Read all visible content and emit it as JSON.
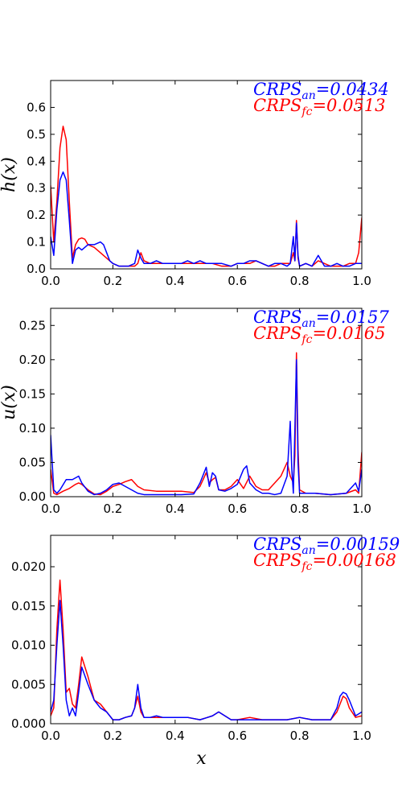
{
  "chart_data": [
    {
      "type": "line",
      "ylabel": "h(x)",
      "xlim": [
        0,
        1
      ],
      "ylim": [
        0,
        0.7
      ],
      "xticks": [
        "0.0",
        "0.2",
        "0.4",
        "0.6",
        "0.8",
        "1.0"
      ],
      "yticks": [
        "0.0",
        "0.1",
        "0.2",
        "0.3",
        "0.4",
        "0.5",
        "0.6"
      ],
      "ytick_values": [
        0,
        0.1,
        0.2,
        0.3,
        0.4,
        0.5,
        0.6
      ],
      "annotations": [
        {
          "base": "CRPS",
          "sub": "an",
          "value": "=0.0434",
          "color": "#0000ff"
        },
        {
          "base": "CRPS",
          "sub": "fc",
          "value": "=0.0513",
          "color": "#ff0000"
        }
      ],
      "series": [
        {
          "color": "#0000ff",
          "x": [
            0,
            0.01,
            0.02,
            0.03,
            0.04,
            0.05,
            0.06,
            0.07,
            0.08,
            0.09,
            0.1,
            0.12,
            0.14,
            0.16,
            0.17,
            0.18,
            0.19,
            0.2,
            0.22,
            0.25,
            0.27,
            0.28,
            0.29,
            0.3,
            0.32,
            0.34,
            0.36,
            0.38,
            0.4,
            0.42,
            0.44,
            0.46,
            0.48,
            0.5,
            0.52,
            0.55,
            0.58,
            0.6,
            0.62,
            0.64,
            0.66,
            0.68,
            0.7,
            0.72,
            0.74,
            0.76,
            0.77,
            0.78,
            0.785,
            0.79,
            0.795,
            0.8,
            0.82,
            0.84,
            0.86,
            0.88,
            0.9,
            0.92,
            0.94,
            0.96,
            0.98,
            1.0
          ],
          "y": [
            0.12,
            0.05,
            0.22,
            0.33,
            0.36,
            0.33,
            0.18,
            0.02,
            0.07,
            0.08,
            0.07,
            0.09,
            0.09,
            0.1,
            0.09,
            0.06,
            0.03,
            0.02,
            0.01,
            0.01,
            0.02,
            0.07,
            0.04,
            0.02,
            0.02,
            0.03,
            0.02,
            0.02,
            0.02,
            0.02,
            0.03,
            0.02,
            0.03,
            0.02,
            0.02,
            0.02,
            0.01,
            0.02,
            0.02,
            0.03,
            0.03,
            0.02,
            0.01,
            0.02,
            0.02,
            0.01,
            0.02,
            0.12,
            0.03,
            0.17,
            0.05,
            0.01,
            0.02,
            0.01,
            0.05,
            0.01,
            0.01,
            0.02,
            0.01,
            0.01,
            0.02,
            0.02
          ]
        },
        {
          "color": "#ff0000",
          "x": [
            0,
            0.01,
            0.02,
            0.03,
            0.04,
            0.05,
            0.06,
            0.07,
            0.08,
            0.09,
            0.1,
            0.11,
            0.12,
            0.14,
            0.16,
            0.18,
            0.2,
            0.22,
            0.25,
            0.27,
            0.28,
            0.29,
            0.3,
            0.32,
            0.34,
            0.36,
            0.38,
            0.4,
            0.42,
            0.44,
            0.46,
            0.48,
            0.5,
            0.52,
            0.55,
            0.58,
            0.6,
            0.62,
            0.64,
            0.66,
            0.68,
            0.7,
            0.72,
            0.74,
            0.76,
            0.77,
            0.78,
            0.785,
            0.79,
            0.795,
            0.8,
            0.82,
            0.84,
            0.86,
            0.88,
            0.9,
            0.92,
            0.94,
            0.96,
            0.98,
            0.99,
            1.0
          ],
          "y": [
            0.31,
            0.1,
            0.25,
            0.45,
            0.53,
            0.48,
            0.25,
            0.04,
            0.09,
            0.11,
            0.115,
            0.11,
            0.09,
            0.08,
            0.06,
            0.04,
            0.02,
            0.01,
            0.01,
            0.01,
            0.02,
            0.06,
            0.03,
            0.02,
            0.02,
            0.02,
            0.02,
            0.02,
            0.02,
            0.02,
            0.02,
            0.02,
            0.02,
            0.02,
            0.01,
            0.01,
            0.02,
            0.02,
            0.02,
            0.03,
            0.02,
            0.01,
            0.01,
            0.02,
            0.02,
            0.02,
            0.06,
            0.03,
            0.18,
            0.04,
            0.01,
            0.02,
            0.01,
            0.03,
            0.02,
            0.01,
            0.01,
            0.01,
            0.02,
            0.02,
            0.06,
            0.19
          ]
        }
      ]
    },
    {
      "type": "line",
      "ylabel": "u(x)",
      "xlim": [
        0,
        1
      ],
      "ylim": [
        0,
        0.275
      ],
      "xticks": [
        "0.0",
        "0.2",
        "0.4",
        "0.6",
        "0.8",
        "1.0"
      ],
      "yticks": [
        "0.00",
        "0.05",
        "0.10",
        "0.15",
        "0.20",
        "0.25"
      ],
      "ytick_values": [
        0,
        0.05,
        0.1,
        0.15,
        0.2,
        0.25
      ],
      "annotations": [
        {
          "base": "CRPS",
          "sub": "an",
          "value": "=0.0157",
          "color": "#0000ff"
        },
        {
          "base": "CRPS",
          "sub": "fc",
          "value": "=0.0165",
          "color": "#ff0000"
        }
      ],
      "series": [
        {
          "color": "#0000ff",
          "x": [
            0,
            0.01,
            0.02,
            0.03,
            0.05,
            0.07,
            0.09,
            0.1,
            0.12,
            0.14,
            0.16,
            0.18,
            0.2,
            0.22,
            0.24,
            0.26,
            0.28,
            0.3,
            0.34,
            0.38,
            0.42,
            0.46,
            0.48,
            0.5,
            0.51,
            0.52,
            0.53,
            0.54,
            0.56,
            0.58,
            0.6,
            0.62,
            0.63,
            0.64,
            0.66,
            0.68,
            0.7,
            0.72,
            0.74,
            0.76,
            0.77,
            0.775,
            0.78,
            0.785,
            0.79,
            0.795,
            0.8,
            0.81,
            0.82,
            0.85,
            0.9,
            0.95,
            0.98,
            0.99,
            1.0
          ],
          "y": [
            0.09,
            0.01,
            0.005,
            0.01,
            0.025,
            0.025,
            0.03,
            0.02,
            0.008,
            0.003,
            0.005,
            0.01,
            0.018,
            0.02,
            0.015,
            0.01,
            0.005,
            0.003,
            0.003,
            0.003,
            0.003,
            0.004,
            0.02,
            0.043,
            0.015,
            0.035,
            0.03,
            0.01,
            0.008,
            0.012,
            0.018,
            0.04,
            0.045,
            0.02,
            0.01,
            0.005,
            0.005,
            0.003,
            0.005,
            0.03,
            0.11,
            0.04,
            0.005,
            0.1,
            0.2,
            0.05,
            0.005,
            0.005,
            0.005,
            0.005,
            0.003,
            0.005,
            0.02,
            0.008,
            0.04
          ]
        },
        {
          "color": "#ff0000",
          "x": [
            0,
            0.01,
            0.02,
            0.04,
            0.06,
            0.08,
            0.09,
            0.1,
            0.12,
            0.14,
            0.16,
            0.18,
            0.2,
            0.22,
            0.24,
            0.26,
            0.28,
            0.3,
            0.34,
            0.38,
            0.42,
            0.46,
            0.48,
            0.5,
            0.51,
            0.52,
            0.53,
            0.54,
            0.56,
            0.58,
            0.6,
            0.62,
            0.64,
            0.66,
            0.68,
            0.7,
            0.72,
            0.74,
            0.76,
            0.77,
            0.78,
            0.785,
            0.79,
            0.795,
            0.8,
            0.82,
            0.85,
            0.9,
            0.95,
            0.98,
            0.99,
            1.0
          ],
          "y": [
            0.04,
            0.005,
            0.003,
            0.008,
            0.012,
            0.018,
            0.02,
            0.018,
            0.01,
            0.004,
            0.003,
            0.008,
            0.015,
            0.018,
            0.022,
            0.025,
            0.015,
            0.01,
            0.008,
            0.008,
            0.008,
            0.006,
            0.015,
            0.035,
            0.02,
            0.025,
            0.028,
            0.01,
            0.01,
            0.015,
            0.025,
            0.012,
            0.03,
            0.015,
            0.01,
            0.01,
            0.02,
            0.03,
            0.05,
            0.03,
            0.02,
            0.06,
            0.21,
            0.07,
            0.01,
            0.005,
            0.005,
            0.003,
            0.005,
            0.01,
            0.005,
            0.065
          ]
        }
      ]
    },
    {
      "type": "line",
      "ylabel": "",
      "xlabel": "x",
      "xlim": [
        0,
        1
      ],
      "ylim": [
        0,
        0.024
      ],
      "xticks": [
        "0.0",
        "0.2",
        "0.4",
        "0.6",
        "0.8",
        "1.0"
      ],
      "yticks": [
        "0.000",
        "0.005",
        "0.010",
        "0.015",
        "0.020"
      ],
      "ytick_values": [
        0,
        0.005,
        0.01,
        0.015,
        0.02
      ],
      "annotations": [
        {
          "base": "CRPS",
          "sub": "an",
          "value": "=0.00159",
          "color": "#0000ff"
        },
        {
          "base": "CRPS",
          "sub": "fc",
          "value": "=0.00168",
          "color": "#ff0000"
        }
      ],
      "series": [
        {
          "color": "#0000ff",
          "x": [
            0,
            0.01,
            0.02,
            0.03,
            0.04,
            0.05,
            0.06,
            0.07,
            0.08,
            0.09,
            0.1,
            0.12,
            0.14,
            0.16,
            0.18,
            0.2,
            0.22,
            0.24,
            0.26,
            0.27,
            0.28,
            0.29,
            0.3,
            0.32,
            0.34,
            0.36,
            0.38,
            0.4,
            0.44,
            0.48,
            0.52,
            0.54,
            0.56,
            0.58,
            0.6,
            0.64,
            0.68,
            0.72,
            0.76,
            0.8,
            0.84,
            0.88,
            0.9,
            0.92,
            0.93,
            0.94,
            0.95,
            0.96,
            0.98,
            1.0
          ],
          "y": [
            0.0015,
            0.003,
            0.01,
            0.0157,
            0.01,
            0.003,
            0.001,
            0.002,
            0.001,
            0.004,
            0.0072,
            0.005,
            0.003,
            0.002,
            0.0015,
            0.0005,
            0.0005,
            0.0008,
            0.001,
            0.002,
            0.005,
            0.002,
            0.0008,
            0.0008,
            0.001,
            0.0008,
            0.0008,
            0.0008,
            0.0008,
            0.0005,
            0.001,
            0.0015,
            0.001,
            0.0005,
            0.0005,
            0.0005,
            0.0005,
            0.0005,
            0.0005,
            0.0008,
            0.0005,
            0.0005,
            0.0005,
            0.002,
            0.0035,
            0.004,
            0.0038,
            0.003,
            0.001,
            0.0015
          ]
        },
        {
          "color": "#ff0000",
          "x": [
            0,
            0.01,
            0.02,
            0.03,
            0.04,
            0.05,
            0.06,
            0.07,
            0.08,
            0.09,
            0.1,
            0.12,
            0.14,
            0.16,
            0.18,
            0.2,
            0.22,
            0.24,
            0.26,
            0.27,
            0.28,
            0.29,
            0.3,
            0.32,
            0.34,
            0.36,
            0.38,
            0.4,
            0.44,
            0.48,
            0.52,
            0.54,
            0.56,
            0.58,
            0.6,
            0.64,
            0.68,
            0.72,
            0.76,
            0.8,
            0.84,
            0.88,
            0.9,
            0.92,
            0.93,
            0.94,
            0.95,
            0.96,
            0.98,
            1.0
          ],
          "y": [
            0.001,
            0.002,
            0.012,
            0.0183,
            0.012,
            0.004,
            0.0045,
            0.0025,
            0.002,
            0.005,
            0.0085,
            0.006,
            0.003,
            0.0025,
            0.0015,
            0.0005,
            0.0005,
            0.0008,
            0.001,
            0.002,
            0.0035,
            0.0015,
            0.0008,
            0.0008,
            0.0008,
            0.0008,
            0.0008,
            0.0008,
            0.0008,
            0.0005,
            0.001,
            0.0015,
            0.001,
            0.0005,
            0.0005,
            0.0008,
            0.0005,
            0.0005,
            0.0005,
            0.0008,
            0.0005,
            0.0005,
            0.0005,
            0.0015,
            0.0025,
            0.0035,
            0.0032,
            0.002,
            0.0008,
            0.001
          ]
        }
      ]
    }
  ]
}
